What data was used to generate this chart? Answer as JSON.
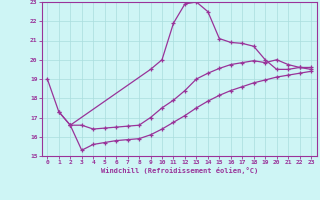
{
  "xlabel": "Windchill (Refroidissement éolien,°C)",
  "bg_color": "#cef5f5",
  "line_color": "#993399",
  "grid_color": "#aadddd",
  "xlim": [
    -0.5,
    23.5
  ],
  "ylim": [
    15,
    23
  ],
  "xticks": [
    0,
    1,
    2,
    3,
    4,
    5,
    6,
    7,
    8,
    9,
    10,
    11,
    12,
    13,
    14,
    15,
    16,
    17,
    18,
    19,
    20,
    21,
    22,
    23
  ],
  "yticks": [
    15,
    16,
    17,
    18,
    19,
    20,
    21,
    22,
    23
  ],
  "line1_x": [
    0,
    1,
    2,
    9,
    10,
    11,
    12,
    13,
    14,
    15,
    16,
    17,
    18,
    19,
    20,
    21,
    22,
    23
  ],
  "line1_y": [
    19.0,
    17.3,
    16.6,
    19.5,
    20.0,
    21.9,
    22.9,
    23.0,
    22.5,
    21.1,
    20.9,
    20.85,
    20.7,
    20.0,
    19.5,
    19.5,
    19.6,
    19.5
  ],
  "line2_x": [
    1,
    2,
    3,
    4,
    5,
    6,
    7,
    8,
    9,
    10,
    11,
    12,
    13,
    14,
    15,
    16,
    17,
    18,
    19,
    20,
    21,
    22,
    23
  ],
  "line2_y": [
    17.3,
    16.6,
    16.6,
    16.4,
    16.45,
    16.5,
    16.55,
    16.6,
    17.0,
    17.5,
    17.9,
    18.4,
    19.0,
    19.3,
    19.55,
    19.75,
    19.85,
    19.95,
    19.85,
    20.0,
    19.75,
    19.6,
    19.6
  ],
  "line3_x": [
    2,
    3,
    4,
    5,
    6,
    7,
    8,
    9,
    10,
    11,
    12,
    13,
    14,
    15,
    16,
    17,
    18,
    19,
    20,
    21,
    22,
    23
  ],
  "line3_y": [
    16.6,
    15.3,
    15.6,
    15.7,
    15.8,
    15.85,
    15.9,
    16.1,
    16.4,
    16.75,
    17.1,
    17.5,
    17.85,
    18.15,
    18.4,
    18.6,
    18.8,
    18.95,
    19.1,
    19.2,
    19.3,
    19.4
  ]
}
